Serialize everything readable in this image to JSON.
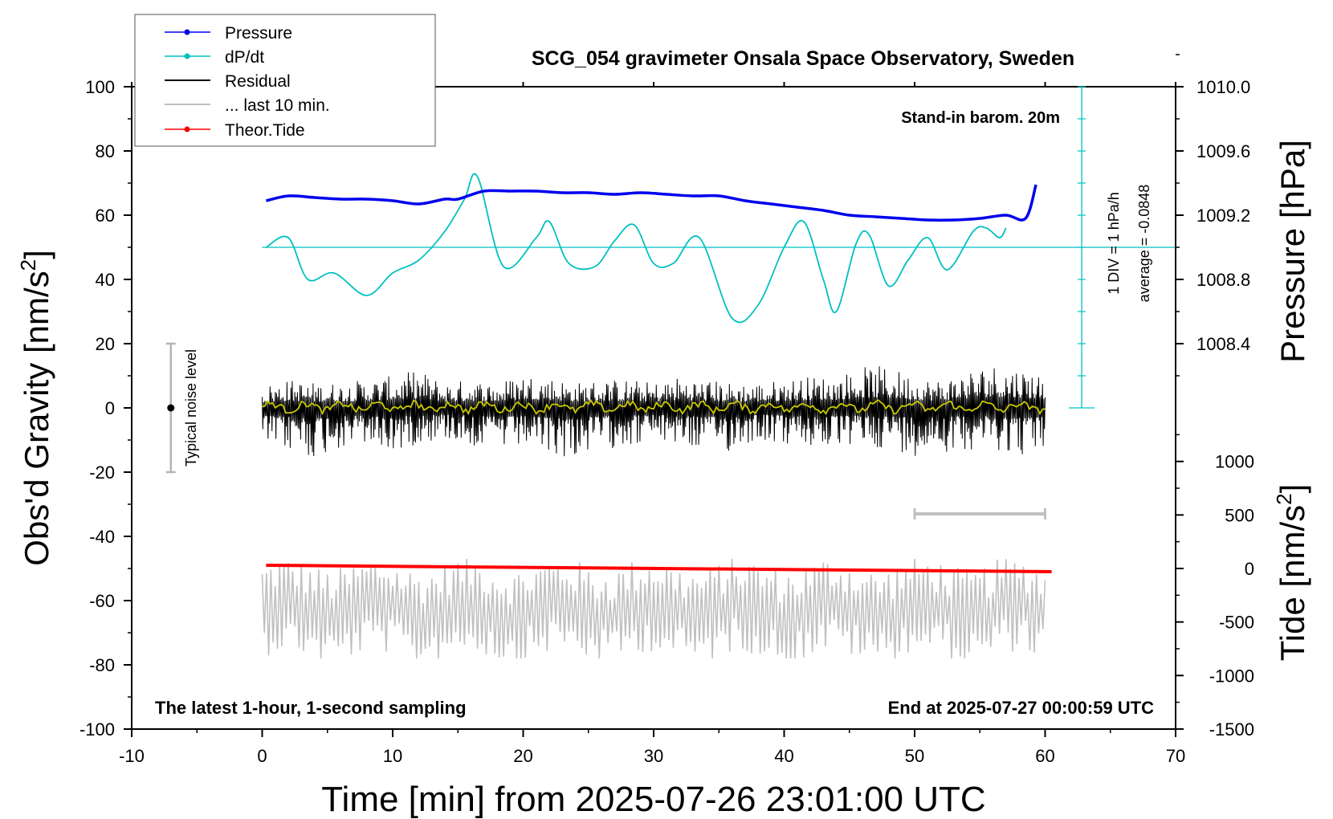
{
  "chart_data": {
    "type": "line",
    "title": "SCG_054 gravimeter Onsala Space Observatory, Sweden",
    "xlabel": "Time [min] from 2025-07-26 23:01:00 UTC",
    "ylabel_main": "Obs'd Gravity [nm/s",
    "ylabel_main_sup": "2",
    "ylabel_main_close": "]",
    "ylabel_pressure": "Pressure [hPa]",
    "ylabel_tide": "Tide [nm/s",
    "ylabel_tide_sup": "2",
    "ylabel_tide_close": "]",
    "xlim": [
      -10,
      70
    ],
    "ylim": [
      -100,
      100
    ],
    "pressure_range": [
      1008.0,
      1010.4
    ],
    "tide_range": [
      -1500,
      1500
    ],
    "x_ticks": [
      "-10",
      "0",
      "10",
      "20",
      "30",
      "40",
      "50",
      "60",
      "70"
    ],
    "y_ticks": [
      "100",
      "80",
      "60",
      "40",
      "20",
      "0",
      "-20",
      "-40",
      "-60",
      "-80",
      "-100"
    ],
    "pressure_ticks": [
      "1010.0",
      "1009.6",
      "1009.2",
      "1008.8",
      "1008.4"
    ],
    "tide_ticks": [
      "1000",
      "500",
      "0",
      "-500",
      "-1000",
      "-1500"
    ],
    "annotations": {
      "barometer": "Stand-in barom. 20m",
      "div": "1 DIV = 1 hPa/h",
      "average": "average = -0.0848",
      "noise": "Typical noise level",
      "sampling": "The latest 1-hour, 1-second sampling",
      "end": "End at 2025-07-27 00:00:59 UTC"
    },
    "legend": {
      "position": "top-left",
      "entries": [
        "Pressure",
        "dP/dt",
        "Residual",
        "... last 10 min.",
        "Theor.Tide"
      ]
    },
    "series": [
      {
        "name": "Pressure",
        "unit": "hPa",
        "color": "#0000ee",
        "x": [
          0.3,
          2,
          4,
          6,
          8,
          10,
          12,
          14,
          15,
          17,
          19,
          21,
          23,
          25,
          27,
          29,
          31,
          33,
          35,
          37,
          39,
          41,
          43,
          45,
          47,
          49,
          51,
          53,
          55,
          57,
          58.5,
          59.3
        ],
        "values": [
          1009.29,
          1009.32,
          1009.31,
          1009.3,
          1009.3,
          1009.29,
          1009.27,
          1009.3,
          1009.3,
          1009.35,
          1009.35,
          1009.35,
          1009.34,
          1009.34,
          1009.33,
          1009.34,
          1009.33,
          1009.32,
          1009.32,
          1009.29,
          1009.27,
          1009.25,
          1009.23,
          1009.2,
          1009.19,
          1009.18,
          1009.17,
          1009.17,
          1009.18,
          1009.2,
          1009.18,
          1009.39
        ]
      },
      {
        "name": "dP/dt",
        "unit": "hPa/h",
        "color": "#00c0c0",
        "x": [
          0.3,
          2,
          3.5,
          5.5,
          8,
          10,
          12,
          14,
          15.5,
          16.5,
          18.5,
          21,
          22,
          23.5,
          25.5,
          27,
          28.5,
          30,
          31.5,
          33.5,
          36,
          38,
          40,
          41.5,
          43,
          44,
          45.5,
          46.5,
          48,
          49.5,
          51,
          52.5,
          54.5,
          55.5,
          56.5,
          57
        ],
        "values": [
          0.0,
          0.3,
          -1.0,
          -0.8,
          -1.5,
          -0.8,
          -0.4,
          0.5,
          1.5,
          2.2,
          -0.6,
          0.3,
          0.8,
          -0.5,
          -0.6,
          0.2,
          0.7,
          -0.5,
          -0.5,
          0.3,
          -2.2,
          -1.8,
          0.0,
          0.8,
          -1.0,
          -2.0,
          0.1,
          0.4,
          -1.2,
          -0.4,
          0.3,
          -0.7,
          0.5,
          0.6,
          0.3,
          0.6
        ]
      },
      {
        "name": "Residual",
        "unit": "nm/s^2",
        "color": "#000000",
        "x_range": [
          0,
          60
        ],
        "mean": 0,
        "approx_amplitude": 8,
        "envelope_max": [
          7,
          9,
          8,
          8,
          9,
          10,
          12,
          8,
          9,
          8,
          11,
          10,
          8,
          9,
          9,
          8,
          10,
          9,
          8,
          8,
          9,
          10,
          10,
          13,
          13,
          10,
          9,
          12,
          14,
          13,
          11
        ],
        "envelope_min": [
          -12,
          -14,
          -16,
          -13,
          -12,
          -15,
          -11,
          -10,
          -12,
          -14,
          -13,
          -15,
          -16,
          -13,
          -12,
          -11,
          -12,
          -14,
          -14,
          -10,
          -12,
          -13,
          -13,
          -12,
          -13,
          -15,
          -14,
          -13,
          -13,
          -15,
          -14
        ]
      },
      {
        "name": "Residual (smoothed)",
        "unit": "nm/s^2",
        "color": "#c8c800",
        "x_range": [
          0,
          60
        ],
        "mean": 0.3
      },
      {
        "name": "... last 10 min.",
        "unit": "nm/s^2",
        "color": "#c0c0c0",
        "x_range": [
          0,
          60
        ],
        "mean": -63,
        "min": -78,
        "max": -47,
        "bar_x": [
          50,
          60
        ],
        "bar_y": -33
      },
      {
        "name": "Theor.Tide",
        "unit": "nm/s^2",
        "color": "#ff0000",
        "x": [
          0.3,
          60.5
        ],
        "values": [
          30,
          -30
        ]
      }
    ],
    "noise_level": {
      "x": -7,
      "center": 0,
      "low": -20,
      "high": 20
    }
  }
}
